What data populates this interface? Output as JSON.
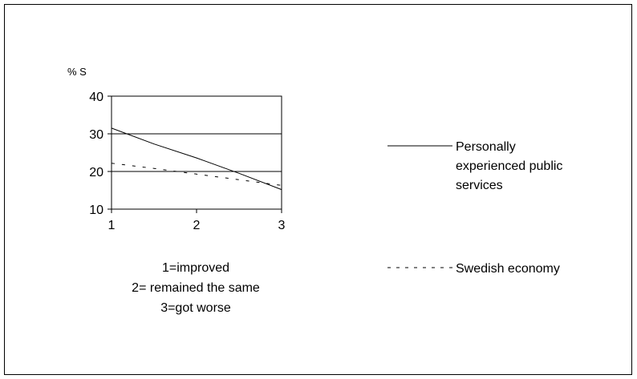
{
  "chart_data": {
    "type": "line",
    "y_unit_label": "% S",
    "x": [
      1,
      2,
      3
    ],
    "x_ticks": [
      "1",
      "2",
      "3"
    ],
    "xlim": [
      1,
      3
    ],
    "y_ticks": [
      "40",
      "30",
      "20",
      "10"
    ],
    "ylim": [
      10,
      40
    ],
    "grid": "horizontal",
    "legend_position": "right",
    "x_caption": [
      "1=improved",
      "2= remained the same",
      "3=got worse"
    ],
    "series": [
      {
        "name_lines": [
          "Personally",
          "experienced public",
          "services"
        ],
        "style": "solid",
        "points": [
          [
            1,
            31.5
          ],
          [
            1.5,
            27.3
          ],
          [
            2,
            23.6
          ],
          [
            2.5,
            19.5
          ],
          [
            3,
            15.2
          ]
        ]
      },
      {
        "name_lines": [
          "Swedish economy"
        ],
        "style": "dashed",
        "points": [
          [
            1,
            22.2
          ],
          [
            1.5,
            20.8
          ],
          [
            2,
            19.3
          ],
          [
            2.5,
            17.8
          ],
          [
            3,
            16.3
          ]
        ]
      }
    ]
  },
  "colors": {
    "line": "#000000",
    "grid": "#000000",
    "background": "#ffffff"
  }
}
